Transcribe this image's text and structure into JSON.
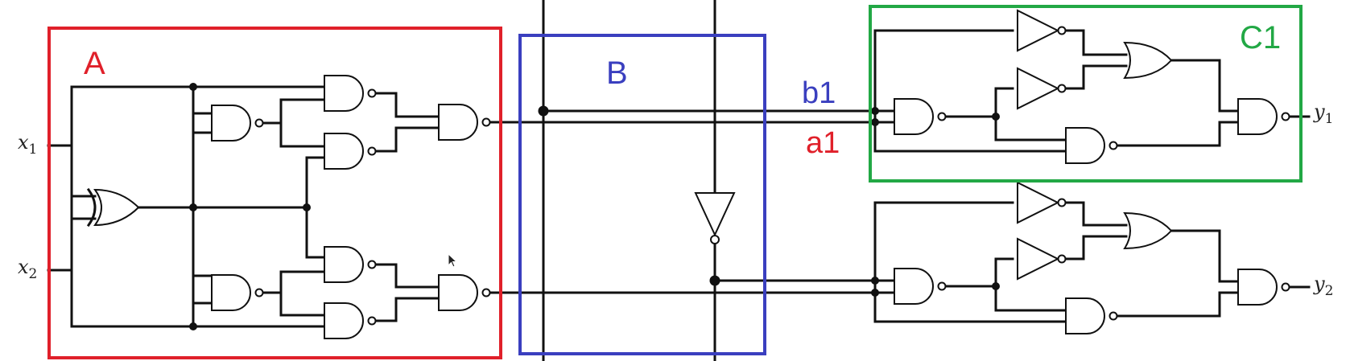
{
  "inputs": {
    "x1": "x",
    "x1_sub": "1",
    "x2": "x",
    "x2_sub": "2"
  },
  "outputs": {
    "y1": "y",
    "y1_sub": "1",
    "y2": "y",
    "y2_sub": "2"
  },
  "blocks": {
    "A": {
      "label": "A",
      "color": "#e0202a"
    },
    "B": {
      "label": "B",
      "color": "#3a3fbf"
    },
    "C1": {
      "label": "C1",
      "color": "#22a845"
    }
  },
  "signals": {
    "b1": {
      "label": "b1",
      "color": "#3a3fbf"
    },
    "a1": {
      "label": "a1",
      "color": "#e0202a"
    }
  },
  "icons": {
    "cursor": "mouse-pointer-icon"
  }
}
